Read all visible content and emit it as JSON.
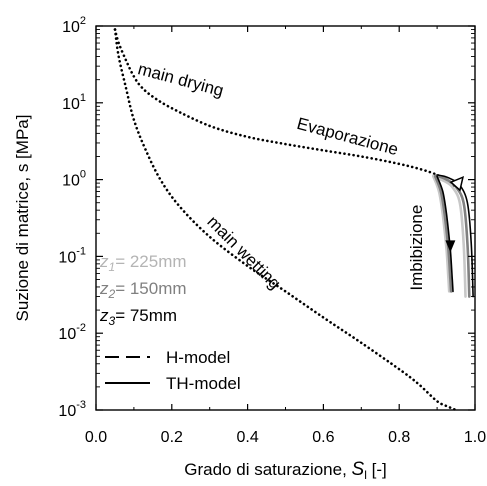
{
  "chart_data": {
    "type": "line",
    "xlabel_text": "Grado di saturazione, ",
    "xlabel_sym": "S",
    "xlabel_sub": "l",
    "xlabel_unit": " [-]",
    "ylabel": "Suzione di matrice, s [MPa]",
    "xlim": [
      0.0,
      1.0
    ],
    "ylim": [
      0.001,
      100
    ],
    "yscale": "log",
    "grid": false,
    "x_ticks": [
      0.0,
      0.2,
      0.4,
      0.6,
      0.8,
      1.0
    ],
    "x_tick_labels": [
      "0.0",
      "0.2",
      "0.4",
      "0.6",
      "0.8",
      "1.0"
    ],
    "y_ticks": [
      {
        "base": "10",
        "exp": "-3"
      },
      {
        "base": "10",
        "exp": "-2"
      },
      {
        "base": "10",
        "exp": "-1"
      },
      {
        "base": "10",
        "exp": "0"
      },
      {
        "base": "10",
        "exp": "1"
      },
      {
        "base": "10",
        "exp": "2"
      }
    ],
    "series": [
      {
        "name": "main drying",
        "style": "dotted",
        "color": "#000000",
        "x": [
          0.05,
          0.06,
          0.08,
          0.1,
          0.12,
          0.15,
          0.2,
          0.3,
          0.4,
          0.5,
          0.6,
          0.7,
          0.8,
          0.86,
          0.9,
          0.93,
          0.95
        ],
        "y": [
          90,
          60,
          35,
          22,
          16,
          12,
          8.5,
          5.0,
          3.6,
          2.9,
          2.4,
          2.0,
          1.6,
          1.35,
          1.15,
          0.95,
          0.78
        ]
      },
      {
        "name": "main wetting",
        "style": "dotted",
        "color": "#000000",
        "x": [
          0.05,
          0.06,
          0.08,
          0.1,
          0.13,
          0.17,
          0.22,
          0.3,
          0.4,
          0.5,
          0.6,
          0.7,
          0.8,
          0.85,
          0.9,
          0.93,
          0.95
        ],
        "y": [
          90,
          40,
          15,
          6.0,
          2.5,
          1.0,
          0.45,
          0.18,
          0.075,
          0.035,
          0.016,
          0.0075,
          0.0034,
          0.0022,
          0.0013,
          0.0011,
          0.001
        ]
      },
      {
        "name": "Evaporazione z1",
        "style": "solid",
        "color": "#c8c8c8",
        "x": [
          0.975,
          0.97,
          0.96,
          0.94,
          0.92,
          0.9,
          0.89
        ],
        "y": [
          0.03,
          0.15,
          0.5,
          0.8,
          0.95,
          1.05,
          1.12
        ]
      },
      {
        "name": "Evaporazione z2",
        "style": "solid",
        "color": "#808080",
        "x": [
          0.985,
          0.98,
          0.97,
          0.95,
          0.93,
          0.91,
          0.895
        ],
        "y": [
          0.03,
          0.15,
          0.5,
          0.8,
          0.97,
          1.08,
          1.12
        ]
      },
      {
        "name": "Evaporazione z3",
        "style": "solid",
        "color": "#000000",
        "x": [
          0.995,
          0.99,
          0.98,
          0.96,
          0.94,
          0.92,
          0.9
        ],
        "y": [
          0.03,
          0.15,
          0.5,
          0.85,
          1.0,
          1.1,
          1.15
        ]
      },
      {
        "name": "Imbibizione z1",
        "style": "solid",
        "color": "#c8c8c8",
        "x": [
          0.89,
          0.905,
          0.915,
          0.925,
          0.93,
          0.932
        ],
        "y": [
          1.1,
          0.7,
          0.35,
          0.12,
          0.05,
          0.035
        ]
      },
      {
        "name": "Imbibizione z2",
        "style": "solid",
        "color": "#808080",
        "x": [
          0.895,
          0.91,
          0.92,
          0.93,
          0.935,
          0.937
        ],
        "y": [
          1.1,
          0.7,
          0.35,
          0.12,
          0.05,
          0.035
        ]
      },
      {
        "name": "Imbibizione z3",
        "style": "solid",
        "color": "#000000",
        "x": [
          0.9,
          0.915,
          0.925,
          0.935,
          0.94,
          0.942
        ],
        "y": [
          1.1,
          0.7,
          0.35,
          0.12,
          0.05,
          0.035
        ]
      }
    ],
    "arrows": [
      {
        "type": "open-triangle",
        "x": 0.955,
        "y": 0.82
      },
      {
        "type": "filled-triangle",
        "x": 0.935,
        "y": 0.12
      }
    ],
    "annotations": [
      {
        "text": "main drying",
        "x": 0.22,
        "y": 17,
        "rotate": 15
      },
      {
        "text": "main wetting",
        "x": 0.38,
        "y": 0.1,
        "rotate": 45
      },
      {
        "text": "Evaporazione",
        "x": 0.66,
        "y": 3.1,
        "rotate": 15
      },
      {
        "text": "Imbibizione",
        "x": 0.86,
        "y": 0.13,
        "rotate": -90
      }
    ],
    "depth_labels": [
      {
        "sym": "z",
        "sub": "1",
        "value": "= 225mm",
        "color": "#b4b4b4"
      },
      {
        "sym": "z",
        "sub": "2",
        "value": "= 150mm",
        "color": "#808080"
      },
      {
        "sym": "z",
        "sub": "3",
        "value": "= 75mm",
        "color": "#000000"
      }
    ],
    "legend": [
      {
        "label": "H-model",
        "style": "dashed"
      },
      {
        "label": "TH-model",
        "style": "solid"
      }
    ],
    "legend_position": "lower-left"
  }
}
